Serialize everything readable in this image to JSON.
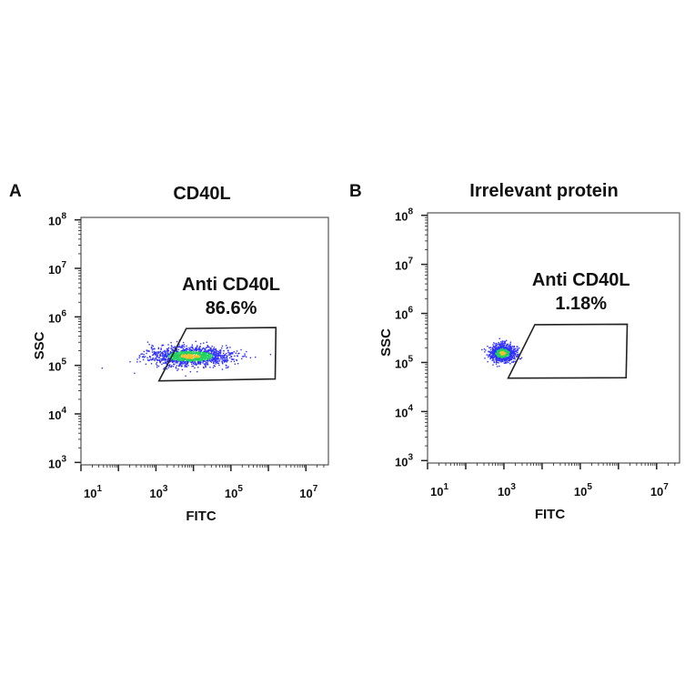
{
  "chart_data": [
    {
      "type": "scatter",
      "panel_label": "A",
      "title": "CD40L",
      "xlabel": "FITC",
      "ylabel": "SSC",
      "x_scale": "log",
      "y_scale": "log",
      "xlim_log10": [
        1,
        7.6
      ],
      "ylim_log10": [
        2.95,
        8.05
      ],
      "x_ticks": [
        {
          "base": "10",
          "exp": "1"
        },
        {
          "base": "10",
          "exp": "3"
        },
        {
          "base": "10",
          "exp": "5"
        },
        {
          "base": "10",
          "exp": "7"
        }
      ],
      "x_tick_exps": [
        1,
        3,
        5,
        7
      ],
      "y_ticks": [
        {
          "base": "10",
          "exp": "3"
        },
        {
          "base": "10",
          "exp": "4"
        },
        {
          "base": "10",
          "exp": "5"
        },
        {
          "base": "10",
          "exp": "6"
        },
        {
          "base": "10",
          "exp": "7"
        },
        {
          "base": "10",
          "exp": "8"
        }
      ],
      "y_tick_exps": [
        3,
        4,
        5,
        6,
        7,
        8
      ],
      "gate": {
        "name": "Anti CD40L",
        "percent": "86.6%",
        "vertices_log10": [
          [
            3.81,
            5.76
          ],
          [
            6.2,
            5.78
          ],
          [
            6.18,
            4.72
          ],
          [
            3.08,
            4.68
          ]
        ]
      },
      "population": {
        "center_log10": [
          3.9,
          5.2
        ],
        "spread_log10": [
          0.55,
          0.1
        ],
        "count": 1400
      },
      "grid": false
    },
    {
      "type": "scatter",
      "panel_label": "B",
      "title": "Irrelevant protein",
      "xlabel": "FITC",
      "ylabel": "SSC",
      "x_scale": "log",
      "y_scale": "log",
      "xlim_log10": [
        1,
        7.6
      ],
      "ylim_log10": [
        2.95,
        8.05
      ],
      "x_ticks": [
        {
          "base": "10",
          "exp": "1"
        },
        {
          "base": "10",
          "exp": "3"
        },
        {
          "base": "10",
          "exp": "5"
        },
        {
          "base": "10",
          "exp": "7"
        }
      ],
      "x_tick_exps": [
        1,
        3,
        5,
        7
      ],
      "y_ticks": [
        {
          "base": "10",
          "exp": "3"
        },
        {
          "base": "10",
          "exp": "4"
        },
        {
          "base": "10",
          "exp": "5"
        },
        {
          "base": "10",
          "exp": "6"
        },
        {
          "base": "10",
          "exp": "7"
        },
        {
          "base": "10",
          "exp": "8"
        }
      ],
      "y_tick_exps": [
        3,
        4,
        5,
        6,
        7,
        8
      ],
      "gate": {
        "name": "Anti CD40L",
        "percent": "1.18%",
        "vertices_log10": [
          [
            3.81,
            5.77
          ],
          [
            6.23,
            5.78
          ],
          [
            6.2,
            4.69
          ],
          [
            3.11,
            4.68
          ]
        ]
      },
      "population": {
        "center_log10": [
          2.95,
          5.2
        ],
        "spread_log10": [
          0.17,
          0.09
        ],
        "count": 900
      },
      "grid": false
    }
  ],
  "colors": {
    "density_low": "#3030ff",
    "density_mid": "#20d060",
    "density_high": "#f0c030",
    "gate_line": "#222222",
    "axis": "#222222"
  }
}
